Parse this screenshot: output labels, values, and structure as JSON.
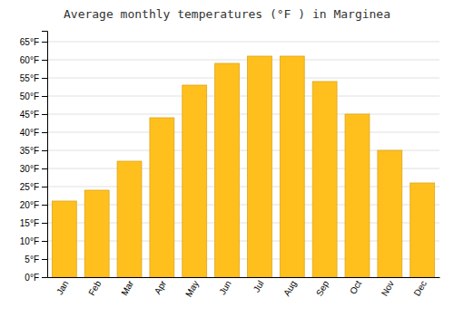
{
  "chart_data": {
    "type": "bar",
    "title": "Average monthly temperatures (°F ) in Marginea",
    "categories": [
      "Jan",
      "Feb",
      "Mar",
      "Apr",
      "May",
      "Jun",
      "Jul",
      "Aug",
      "Sep",
      "Oct",
      "Nov",
      "Dec"
    ],
    "values": [
      21,
      24,
      32,
      44,
      53,
      59,
      61,
      61,
      54,
      45,
      35,
      26
    ],
    "color": "#FFC01E",
    "ylim": [
      0,
      68
    ],
    "yticks": [
      {
        "value": 0,
        "label": "0°F"
      },
      {
        "value": 5,
        "label": "5°F"
      },
      {
        "value": 10,
        "label": "10°F"
      },
      {
        "value": 15,
        "label": "15°F"
      },
      {
        "value": 20,
        "label": "20°F"
      },
      {
        "value": 25,
        "label": "25°F"
      },
      {
        "value": 30,
        "label": "30°F"
      },
      {
        "value": 35,
        "label": "35°F"
      },
      {
        "value": 40,
        "label": "40°F"
      },
      {
        "value": 45,
        "label": "45°F"
      },
      {
        "value": 50,
        "label": "50°F"
      },
      {
        "value": 55,
        "label": "55°F"
      },
      {
        "value": 60,
        "label": "60°F"
      },
      {
        "value": 65,
        "label": "65°F"
      }
    ],
    "grid": true
  }
}
